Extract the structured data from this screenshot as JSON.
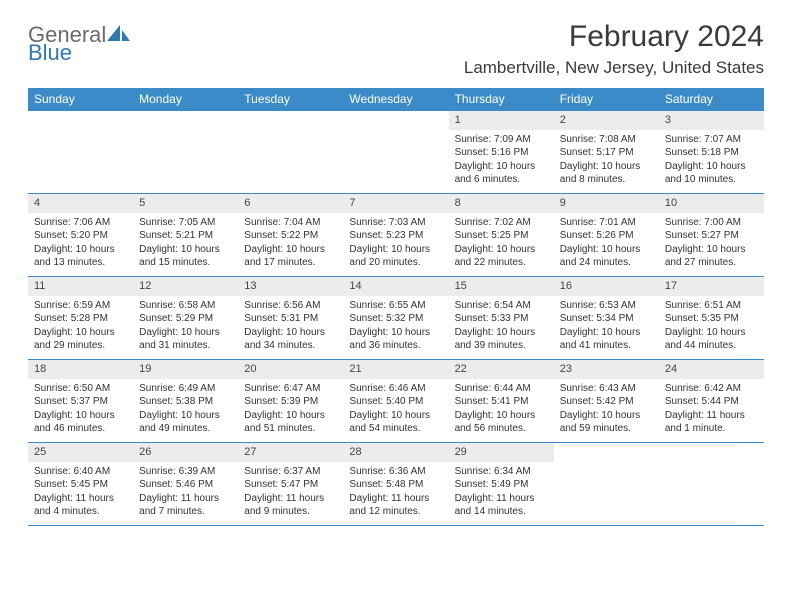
{
  "logo": {
    "text_a": "General",
    "text_b": "Blue"
  },
  "title": "February 2024",
  "location": "Lambertville, New Jersey, United States",
  "colors": {
    "header_bg": "#3b8bc8",
    "header_text": "#ffffff",
    "daynum_bg": "#ececec",
    "border": "#3b8bc8",
    "logo_blue": "#2f79b8",
    "text": "#333333"
  },
  "weekdays": [
    "Sunday",
    "Monday",
    "Tuesday",
    "Wednesday",
    "Thursday",
    "Friday",
    "Saturday"
  ],
  "grid": [
    [
      {
        "n": "",
        "lines": []
      },
      {
        "n": "",
        "lines": []
      },
      {
        "n": "",
        "lines": []
      },
      {
        "n": "",
        "lines": []
      },
      {
        "n": "1",
        "lines": [
          "Sunrise: 7:09 AM",
          "Sunset: 5:16 PM",
          "Daylight: 10 hours and 6 minutes."
        ]
      },
      {
        "n": "2",
        "lines": [
          "Sunrise: 7:08 AM",
          "Sunset: 5:17 PM",
          "Daylight: 10 hours and 8 minutes."
        ]
      },
      {
        "n": "3",
        "lines": [
          "Sunrise: 7:07 AM",
          "Sunset: 5:18 PM",
          "Daylight: 10 hours and 10 minutes."
        ]
      }
    ],
    [
      {
        "n": "4",
        "lines": [
          "Sunrise: 7:06 AM",
          "Sunset: 5:20 PM",
          "Daylight: 10 hours and 13 minutes."
        ]
      },
      {
        "n": "5",
        "lines": [
          "Sunrise: 7:05 AM",
          "Sunset: 5:21 PM",
          "Daylight: 10 hours and 15 minutes."
        ]
      },
      {
        "n": "6",
        "lines": [
          "Sunrise: 7:04 AM",
          "Sunset: 5:22 PM",
          "Daylight: 10 hours and 17 minutes."
        ]
      },
      {
        "n": "7",
        "lines": [
          "Sunrise: 7:03 AM",
          "Sunset: 5:23 PM",
          "Daylight: 10 hours and 20 minutes."
        ]
      },
      {
        "n": "8",
        "lines": [
          "Sunrise: 7:02 AM",
          "Sunset: 5:25 PM",
          "Daylight: 10 hours and 22 minutes."
        ]
      },
      {
        "n": "9",
        "lines": [
          "Sunrise: 7:01 AM",
          "Sunset: 5:26 PM",
          "Daylight: 10 hours and 24 minutes."
        ]
      },
      {
        "n": "10",
        "lines": [
          "Sunrise: 7:00 AM",
          "Sunset: 5:27 PM",
          "Daylight: 10 hours and 27 minutes."
        ]
      }
    ],
    [
      {
        "n": "11",
        "lines": [
          "Sunrise: 6:59 AM",
          "Sunset: 5:28 PM",
          "Daylight: 10 hours and 29 minutes."
        ]
      },
      {
        "n": "12",
        "lines": [
          "Sunrise: 6:58 AM",
          "Sunset: 5:29 PM",
          "Daylight: 10 hours and 31 minutes."
        ]
      },
      {
        "n": "13",
        "lines": [
          "Sunrise: 6:56 AM",
          "Sunset: 5:31 PM",
          "Daylight: 10 hours and 34 minutes."
        ]
      },
      {
        "n": "14",
        "lines": [
          "Sunrise: 6:55 AM",
          "Sunset: 5:32 PM",
          "Daylight: 10 hours and 36 minutes."
        ]
      },
      {
        "n": "15",
        "lines": [
          "Sunrise: 6:54 AM",
          "Sunset: 5:33 PM",
          "Daylight: 10 hours and 39 minutes."
        ]
      },
      {
        "n": "16",
        "lines": [
          "Sunrise: 6:53 AM",
          "Sunset: 5:34 PM",
          "Daylight: 10 hours and 41 minutes."
        ]
      },
      {
        "n": "17",
        "lines": [
          "Sunrise: 6:51 AM",
          "Sunset: 5:35 PM",
          "Daylight: 10 hours and 44 minutes."
        ]
      }
    ],
    [
      {
        "n": "18",
        "lines": [
          "Sunrise: 6:50 AM",
          "Sunset: 5:37 PM",
          "Daylight: 10 hours and 46 minutes."
        ]
      },
      {
        "n": "19",
        "lines": [
          "Sunrise: 6:49 AM",
          "Sunset: 5:38 PM",
          "Daylight: 10 hours and 49 minutes."
        ]
      },
      {
        "n": "20",
        "lines": [
          "Sunrise: 6:47 AM",
          "Sunset: 5:39 PM",
          "Daylight: 10 hours and 51 minutes."
        ]
      },
      {
        "n": "21",
        "lines": [
          "Sunrise: 6:46 AM",
          "Sunset: 5:40 PM",
          "Daylight: 10 hours and 54 minutes."
        ]
      },
      {
        "n": "22",
        "lines": [
          "Sunrise: 6:44 AM",
          "Sunset: 5:41 PM",
          "Daylight: 10 hours and 56 minutes."
        ]
      },
      {
        "n": "23",
        "lines": [
          "Sunrise: 6:43 AM",
          "Sunset: 5:42 PM",
          "Daylight: 10 hours and 59 minutes."
        ]
      },
      {
        "n": "24",
        "lines": [
          "Sunrise: 6:42 AM",
          "Sunset: 5:44 PM",
          "Daylight: 11 hours and 1 minute."
        ]
      }
    ],
    [
      {
        "n": "25",
        "lines": [
          "Sunrise: 6:40 AM",
          "Sunset: 5:45 PM",
          "Daylight: 11 hours and 4 minutes."
        ]
      },
      {
        "n": "26",
        "lines": [
          "Sunrise: 6:39 AM",
          "Sunset: 5:46 PM",
          "Daylight: 11 hours and 7 minutes."
        ]
      },
      {
        "n": "27",
        "lines": [
          "Sunrise: 6:37 AM",
          "Sunset: 5:47 PM",
          "Daylight: 11 hours and 9 minutes."
        ]
      },
      {
        "n": "28",
        "lines": [
          "Sunrise: 6:36 AM",
          "Sunset: 5:48 PM",
          "Daylight: 11 hours and 12 minutes."
        ]
      },
      {
        "n": "29",
        "lines": [
          "Sunrise: 6:34 AM",
          "Sunset: 5:49 PM",
          "Daylight: 11 hours and 14 minutes."
        ]
      },
      {
        "n": "",
        "lines": []
      },
      {
        "n": "",
        "lines": []
      }
    ]
  ]
}
